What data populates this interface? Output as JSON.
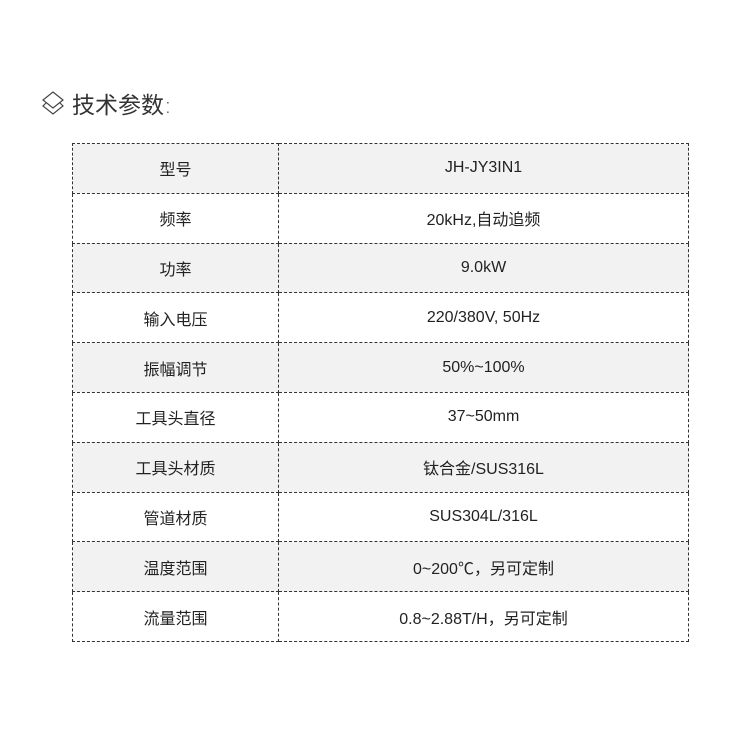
{
  "heading": {
    "icon": "layers-diamond-icon",
    "title": "技术参数:"
  },
  "colors": {
    "row_alt": "#f2f2f2",
    "border": "#333333"
  },
  "specs": [
    {
      "label": "型号",
      "value": "JH-JY3IN1"
    },
    {
      "label": "频率",
      "value": "20kHz,自动追频"
    },
    {
      "label": "功率",
      "value": "9.0kW"
    },
    {
      "label": "输入电压",
      "value": "220/380V, 50Hz"
    },
    {
      "label": "振幅调节",
      "value": "50%~100%"
    },
    {
      "label": "工具头直径",
      "value": "37~50mm"
    },
    {
      "label": "工具头材质",
      "value": "钛合金/SUS316L"
    },
    {
      "label": "管道材质",
      "value": "SUS304L/316L"
    },
    {
      "label": "温度范围",
      "value": "0~200℃，另可定制"
    },
    {
      "label": "流量范围",
      "value": "0.8~2.88T/H，另可定制"
    }
  ]
}
